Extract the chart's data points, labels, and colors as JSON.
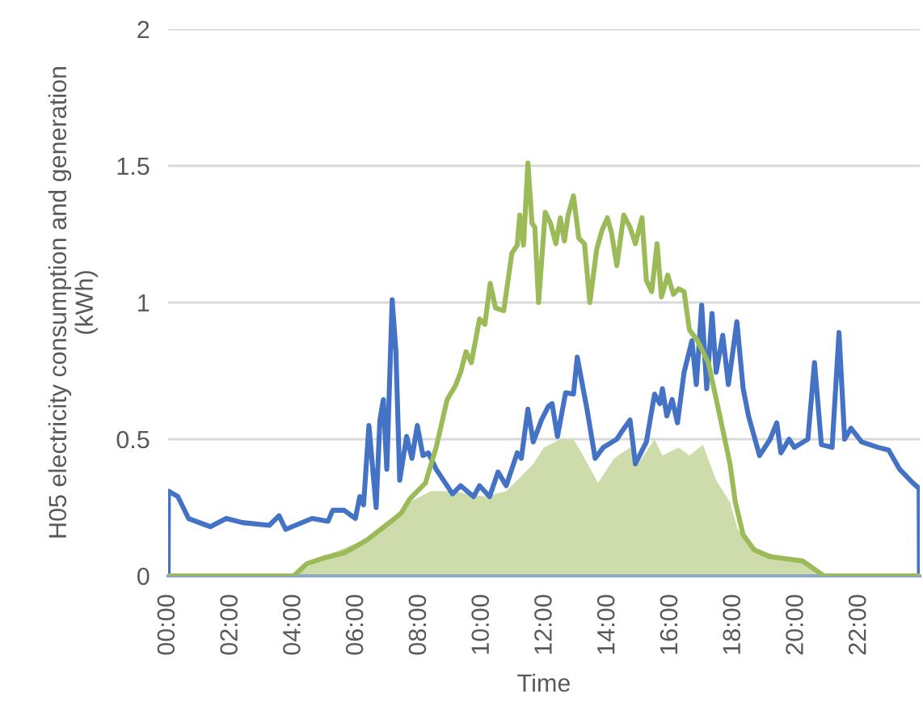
{
  "chart_data": {
    "type": "line",
    "xlabel": "Time",
    "ylabel": "H05 electricity consumption and generation\n(kWh)",
    "xlim": [
      0,
      23.92
    ],
    "ylim": [
      0,
      2
    ],
    "xticks": [
      {
        "value": 0,
        "label": "00:00"
      },
      {
        "value": 2,
        "label": "02:00"
      },
      {
        "value": 4,
        "label": "04:00"
      },
      {
        "value": 6,
        "label": "06:00"
      },
      {
        "value": 8,
        "label": "08:00"
      },
      {
        "value": 10,
        "label": "10:00"
      },
      {
        "value": 12,
        "label": "12:00"
      },
      {
        "value": 14,
        "label": "14:00"
      },
      {
        "value": 16,
        "label": "16:00"
      },
      {
        "value": 18,
        "label": "18:00"
      },
      {
        "value": 20,
        "label": "20:00"
      },
      {
        "value": 22,
        "label": "22:00"
      }
    ],
    "yticks": [
      0,
      0.5,
      1,
      1.5,
      2
    ],
    "grid": "y",
    "legend": false,
    "marker": "none",
    "line_style": "solid",
    "series": [
      {
        "type": "area",
        "color": "#cddcaa",
        "x": [
          4.0,
          4.94,
          6.65,
          7.68,
          8.36,
          9.05,
          10.08,
          10.76,
          11.11,
          11.62,
          11.96,
          12.48,
          12.9,
          13.16,
          13.68,
          14.19,
          14.7,
          14.96,
          15.48,
          15.73,
          16.25,
          16.59,
          17.02,
          17.44,
          17.88,
          18.13,
          18.65,
          20.19,
          20.87
        ],
        "values": [
          0,
          0.07,
          0.15,
          0.27,
          0.31,
          0.31,
          0.29,
          0.31,
          0.35,
          0.41,
          0.47,
          0.5,
          0.5,
          0.45,
          0.34,
          0.43,
          0.47,
          0.41,
          0.5,
          0.44,
          0.47,
          0.44,
          0.48,
          0.35,
          0.27,
          0.17,
          0.095,
          0.055,
          0
        ]
      },
      {
        "color": "#4472c4",
        "x": [
          0,
          0.01,
          0.31,
          0.65,
          1.34,
          1.85,
          2.37,
          3.22,
          3.53,
          3.74,
          4.58,
          5.09,
          5.24,
          5.6,
          5.96,
          6.1,
          6.22,
          6.39,
          6.62,
          6.74,
          6.85,
          6.96,
          7.13,
          7.25,
          7.37,
          7.59,
          7.76,
          7.93,
          8.11,
          8.28,
          8.53,
          9.05,
          9.31,
          9.72,
          9.91,
          10.23,
          10.5,
          10.76,
          11.11,
          11.24,
          11.45,
          11.62,
          11.88,
          12.1,
          12.22,
          12.39,
          12.65,
          12.9,
          13.02,
          13.33,
          13.59,
          13.85,
          14.28,
          14.45,
          14.7,
          14.87,
          15.22,
          15.48,
          15.65,
          15.73,
          15.87,
          16.04,
          16.21,
          16.42,
          16.67,
          16.81,
          16.98,
          17.14,
          17.31,
          17.44,
          17.65,
          17.83,
          18.1,
          18.3,
          18.47,
          18.82,
          19.16,
          19.37,
          19.5,
          19.76,
          19.93,
          20.36,
          20.57,
          20.79,
          21.13,
          21.35,
          21.53,
          21.73,
          22.07,
          22.59,
          22.93,
          23.28,
          23.7,
          23.9,
          23.91
        ],
        "values": [
          0,
          0.31,
          0.29,
          0.21,
          0.18,
          0.21,
          0.195,
          0.185,
          0.22,
          0.17,
          0.21,
          0.2,
          0.24,
          0.24,
          0.21,
          0.29,
          0.26,
          0.55,
          0.25,
          0.57,
          0.645,
          0.39,
          1.01,
          0.82,
          0.35,
          0.51,
          0.43,
          0.55,
          0.44,
          0.45,
          0.39,
          0.3,
          0.33,
          0.29,
          0.33,
          0.29,
          0.38,
          0.33,
          0.45,
          0.43,
          0.61,
          0.49,
          0.57,
          0.62,
          0.63,
          0.51,
          0.67,
          0.665,
          0.8,
          0.61,
          0.43,
          0.47,
          0.5,
          0.53,
          0.57,
          0.41,
          0.49,
          0.665,
          0.63,
          0.685,
          0.585,
          0.645,
          0.56,
          0.745,
          0.86,
          0.7,
          0.99,
          0.685,
          0.96,
          0.745,
          0.88,
          0.7,
          0.93,
          0.685,
          0.585,
          0.44,
          0.5,
          0.56,
          0.45,
          0.5,
          0.47,
          0.5,
          0.78,
          0.48,
          0.47,
          0.89,
          0.5,
          0.54,
          0.49,
          0.47,
          0.46,
          0.39,
          0.34,
          0.32,
          0
        ]
      },
      {
        "color": "#9bbb59",
        "x": [
          0,
          4.0,
          4.42,
          4.94,
          5.62,
          6.31,
          6.99,
          7.42,
          7.68,
          8.19,
          8.53,
          8.88,
          9.14,
          9.31,
          9.48,
          9.65,
          9.91,
          10.08,
          10.25,
          10.42,
          10.68,
          10.94,
          11.11,
          11.19,
          11.31,
          11.45,
          11.58,
          11.67,
          11.79,
          12.0,
          12.17,
          12.34,
          12.48,
          12.61,
          12.73,
          12.9,
          13.07,
          13.25,
          13.42,
          13.64,
          13.81,
          13.98,
          14.11,
          14.28,
          14.5,
          14.7,
          14.87,
          15.08,
          15.22,
          15.39,
          15.56,
          15.7,
          15.9,
          16.08,
          16.25,
          16.42,
          16.59,
          16.85,
          17.19,
          17.53,
          17.88,
          18.05,
          18.3,
          18.65,
          19.16,
          20.19,
          20.87,
          23.91
        ],
        "values": [
          0,
          0,
          0.045,
          0.065,
          0.085,
          0.13,
          0.19,
          0.23,
          0.28,
          0.34,
          0.47,
          0.645,
          0.695,
          0.745,
          0.82,
          0.78,
          0.94,
          0.92,
          1.07,
          0.98,
          0.97,
          1.18,
          1.21,
          1.32,
          1.21,
          1.51,
          1.29,
          1.275,
          1.0,
          1.33,
          1.29,
          1.215,
          1.31,
          1.225,
          1.32,
          1.39,
          1.235,
          1.215,
          1.0,
          1.195,
          1.265,
          1.31,
          1.255,
          1.135,
          1.32,
          1.275,
          1.215,
          1.31,
          1.08,
          1.04,
          1.215,
          1.02,
          1.1,
          1.03,
          1.05,
          1.04,
          0.9,
          0.86,
          0.78,
          0.6,
          0.41,
          0.27,
          0.15,
          0.095,
          0.07,
          0.055,
          0,
          0
        ]
      }
    ]
  }
}
